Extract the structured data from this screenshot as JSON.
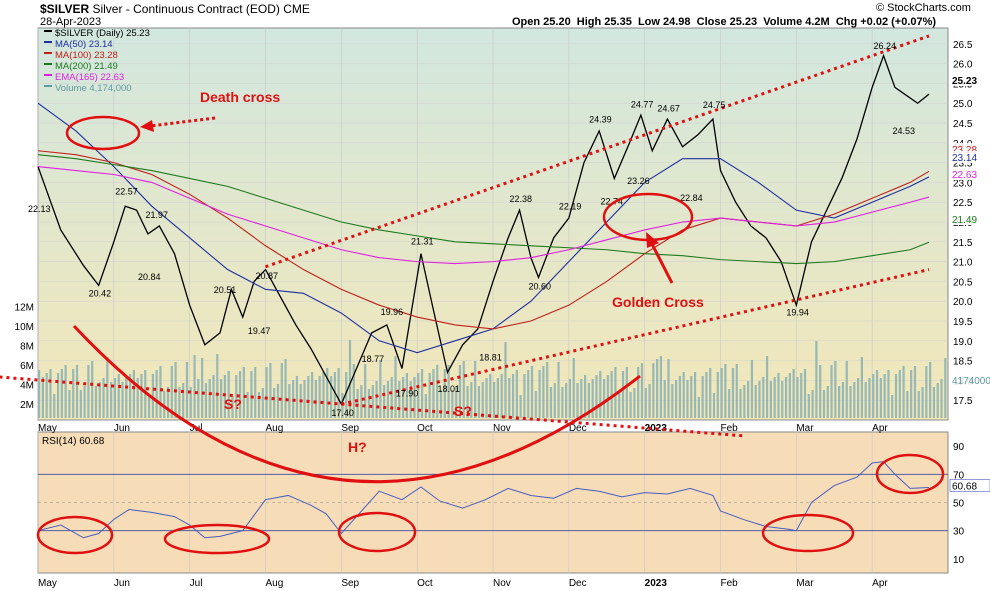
{
  "header": {
    "title_symbol": "$SILVER",
    "title_rest": "Silver - Continuous Contract (EOD)",
    "exchange": "CME",
    "date": "28-Apr-2023",
    "copyright": "© StockCharts.com",
    "ohlc": "Open 25.20  High 25.35  Low 24.98  Close 25.23  Volume 4.2M  Chg +0.02 (+0.07%)"
  },
  "legend": [
    {
      "label": "$SILVER (Daily) 25.23",
      "color": "#000000"
    },
    {
      "label": "MA(50) 23.14",
      "color": "#1f2fa0"
    },
    {
      "label": "MA(100) 23.28",
      "color": "#c0201a"
    },
    {
      "label": "MA(200) 21.49",
      "color": "#1e7a1e"
    },
    {
      "label": "EMA(165) 22.63",
      "color": "#e020e0"
    },
    {
      "label": "Volume 4,174,000",
      "color": "#5e9aa0"
    }
  ],
  "chart_data": [
    {
      "type": "line",
      "name": "price-panel",
      "x_ticks": [
        "May",
        "Jun",
        "Jul",
        "Aug",
        "Sep",
        "Oct",
        "Nov",
        "Dec",
        "2023",
        "Feb",
        "Mar",
        "Apr"
      ],
      "y_ticks": [
        17.5,
        18.0,
        18.5,
        19.0,
        19.5,
        20.0,
        20.5,
        21.0,
        21.5,
        22.0,
        22.5,
        23.0,
        23.5,
        24.0,
        24.5,
        25.0,
        25.5,
        26.0,
        26.5
      ],
      "ylim": [
        17.0,
        26.9
      ],
      "volume_ticks": [
        "2M",
        "4M",
        "6M",
        "8M",
        "10M",
        "12M"
      ],
      "right_labels": [
        {
          "text": "25.23",
          "color": "#000000"
        },
        {
          "text": "23.28",
          "color": "#c0201a"
        },
        {
          "text": "23.14",
          "color": "#1f2fa0"
        },
        {
          "text": "22.63",
          "color": "#e020e0"
        },
        {
          "text": "21.49",
          "color": "#1e7a1e"
        },
        {
          "text": "4174000",
          "color": "#5e9aa0"
        }
      ],
      "price_labels": [
        {
          "text": "22.13",
          "x": 0.0,
          "y": 22.13
        },
        {
          "text": "20.42",
          "x": 0.8,
          "y": 20.42
        },
        {
          "text": "22.57",
          "x": 1.15,
          "y": 22.57
        },
        {
          "text": "21.97",
          "x": 1.55,
          "y": 21.97
        },
        {
          "text": "20.84",
          "x": 1.45,
          "y": 20.84
        },
        {
          "text": "20.51",
          "x": 2.45,
          "y": 20.51
        },
        {
          "text": "20.87",
          "x": 3.0,
          "y": 20.87
        },
        {
          "text": "19.47",
          "x": 2.9,
          "y": 19.47
        },
        {
          "text": "17.40",
          "x": 4.0,
          "y": 17.4
        },
        {
          "text": "18.77",
          "x": 4.4,
          "y": 18.77
        },
        {
          "text": "19.96",
          "x": 4.65,
          "y": 19.96
        },
        {
          "text": "17.90",
          "x": 4.85,
          "y": 17.9
        },
        {
          "text": "21.31",
          "x": 5.05,
          "y": 21.31
        },
        {
          "text": "18.01",
          "x": 5.4,
          "y": 18.01
        },
        {
          "text": "18.81",
          "x": 5.95,
          "y": 18.81
        },
        {
          "text": "22.38",
          "x": 6.35,
          "y": 22.38
        },
        {
          "text": "20.60",
          "x": 6.6,
          "y": 20.6
        },
        {
          "text": "22.19",
          "x": 7.0,
          "y": 22.19
        },
        {
          "text": "22.74",
          "x": 7.55,
          "y": 22.74
        },
        {
          "text": "24.39",
          "x": 7.4,
          "y": 24.39
        },
        {
          "text": "24.77",
          "x": 7.95,
          "y": 24.77
        },
        {
          "text": "23.26",
          "x": 7.9,
          "y": 23.26
        },
        {
          "text": "24.67",
          "x": 8.3,
          "y": 24.67
        },
        {
          "text": "24.75",
          "x": 8.9,
          "y": 24.75
        },
        {
          "text": "22.84",
          "x": 8.6,
          "y": 22.84
        },
        {
          "text": "19.94",
          "x": 10.0,
          "y": 19.94
        },
        {
          "text": "26.24",
          "x": 11.15,
          "y": 26.24
        },
        {
          "text": "24.53",
          "x": 11.4,
          "y": 24.53
        }
      ],
      "series": [
        {
          "name": "$SILVER",
          "color": "#000000",
          "x": [
            0,
            0.3,
            0.6,
            0.8,
            1.0,
            1.15,
            1.3,
            1.45,
            1.6,
            1.8,
            2.0,
            2.2,
            2.4,
            2.55,
            2.7,
            2.85,
            3.0,
            3.2,
            3.4,
            3.6,
            3.8,
            4.0,
            4.2,
            4.4,
            4.6,
            4.8,
            5.05,
            5.2,
            5.4,
            5.6,
            5.8,
            6.0,
            6.2,
            6.35,
            6.5,
            6.6,
            6.8,
            7.0,
            7.2,
            7.4,
            7.6,
            7.8,
            7.95,
            8.1,
            8.3,
            8.5,
            8.7,
            8.9,
            9.0,
            9.2,
            9.4,
            9.6,
            9.8,
            10.0,
            10.2,
            10.4,
            10.6,
            10.8,
            11.0,
            11.15,
            11.3,
            11.45,
            11.6,
            11.75
          ],
          "y": [
            23.4,
            21.8,
            20.9,
            20.4,
            21.5,
            22.4,
            22.3,
            21.7,
            21.9,
            21.2,
            19.9,
            18.9,
            19.2,
            20.3,
            19.6,
            20.5,
            20.8,
            20.1,
            19.4,
            18.8,
            18.1,
            17.4,
            18.3,
            19.2,
            19.4,
            18.3,
            21.2,
            19.9,
            18.2,
            18.9,
            19.3,
            20.5,
            21.6,
            22.3,
            21.1,
            20.6,
            21.6,
            22.1,
            23.5,
            24.3,
            23.1,
            24.0,
            24.7,
            23.8,
            24.6,
            23.9,
            24.2,
            24.6,
            23.3,
            22.5,
            21.9,
            21.6,
            21.0,
            19.9,
            21.5,
            22.3,
            23.1,
            24.1,
            25.4,
            26.2,
            25.4,
            25.2,
            25.0,
            25.23
          ]
        },
        {
          "name": "MA(50)",
          "color": "#1f2fa0",
          "x": [
            0,
            0.5,
            1,
            1.5,
            2,
            2.5,
            3,
            3.5,
            4,
            4.5,
            5,
            5.5,
            6,
            6.5,
            7,
            7.5,
            8,
            8.5,
            9,
            9.5,
            10,
            10.5,
            11,
            11.5,
            11.75
          ],
          "y": [
            25.0,
            24.3,
            23.4,
            22.4,
            21.6,
            20.8,
            20.3,
            20.2,
            19.7,
            19.0,
            18.7,
            19.0,
            19.3,
            20.0,
            21.0,
            22.0,
            23.0,
            23.6,
            23.6,
            23.0,
            22.3,
            22.1,
            22.5,
            22.9,
            23.14
          ]
        },
        {
          "name": "MA(100)",
          "color": "#c0201a",
          "x": [
            0,
            0.5,
            1,
            1.5,
            2,
            2.5,
            3,
            3.5,
            4,
            4.5,
            5,
            5.5,
            6,
            6.5,
            7,
            7.5,
            8,
            8.5,
            9,
            9.5,
            10,
            10.5,
            11,
            11.5,
            11.75
          ],
          "y": [
            23.8,
            23.7,
            23.5,
            23.2,
            22.7,
            22.1,
            21.4,
            20.8,
            20.3,
            19.9,
            19.6,
            19.4,
            19.3,
            19.5,
            19.9,
            20.5,
            21.2,
            21.8,
            22.1,
            22.0,
            21.9,
            22.2,
            22.6,
            23.0,
            23.28
          ]
        },
        {
          "name": "MA(200)",
          "color": "#1e7a1e",
          "x": [
            0,
            0.5,
            1,
            1.5,
            2,
            2.5,
            3,
            3.5,
            4,
            4.5,
            5,
            5.5,
            6,
            6.5,
            7,
            7.5,
            8,
            8.5,
            9,
            9.5,
            10,
            10.5,
            11,
            11.5,
            11.75
          ],
          "y": [
            23.7,
            23.6,
            23.45,
            23.3,
            23.1,
            22.9,
            22.6,
            22.3,
            22.0,
            21.8,
            21.65,
            21.5,
            21.45,
            21.4,
            21.35,
            21.3,
            21.2,
            21.15,
            21.05,
            21.0,
            20.95,
            21.0,
            21.15,
            21.3,
            21.49
          ]
        },
        {
          "name": "EMA(165)",
          "color": "#e020e0",
          "x": [
            0,
            0.5,
            1,
            1.5,
            2,
            2.5,
            3,
            3.5,
            4,
            4.5,
            5,
            5.5,
            6,
            6.5,
            7,
            7.5,
            8,
            8.5,
            9,
            9.5,
            10,
            10.5,
            11,
            11.5,
            11.75
          ],
          "y": [
            23.4,
            23.3,
            23.2,
            23.0,
            22.6,
            22.2,
            21.9,
            21.6,
            21.3,
            21.1,
            21.0,
            20.95,
            21.0,
            21.1,
            21.3,
            21.55,
            21.8,
            22.0,
            22.1,
            22.0,
            21.9,
            22.0,
            22.25,
            22.5,
            22.63
          ]
        }
      ],
      "trendlines": [
        {
          "from": [
            3.0,
            20.87
          ],
          "to": [
            11.75,
            26.7
          ]
        },
        {
          "from": [
            4.0,
            17.4
          ],
          "to": [
            11.75,
            20.8
          ]
        },
        {
          "from": [
            -0.6,
            18.1
          ],
          "to": [
            9.3,
            16.6
          ]
        }
      ],
      "annotations": [
        {
          "text": "Death cross",
          "color": "#e01010"
        },
        {
          "text": "Golden Cross",
          "color": "#e01010"
        },
        {
          "text": "S?",
          "color": "#e01010"
        },
        {
          "text": "S?",
          "color": "#e01010"
        },
        {
          "text": "H?",
          "color": "#e01010"
        }
      ]
    },
    {
      "type": "line",
      "name": "rsi-panel",
      "title": "RSI(14) 60.68",
      "x_ticks": [
        "May",
        "Jun",
        "Jul",
        "Aug",
        "Sep",
        "Oct",
        "Nov",
        "Dec",
        "2023",
        "Feb",
        "Mar",
        "Apr"
      ],
      "y_ticks": [
        10,
        30,
        50,
        70,
        90
      ],
      "ylim": [
        0,
        100
      ],
      "right_label": "60.68",
      "series": [
        {
          "name": "RSI(14)",
          "color": "#4a5cc0",
          "x": [
            0,
            0.3,
            0.6,
            0.8,
            1.0,
            1.2,
            1.5,
            1.8,
            2.0,
            2.2,
            2.4,
            2.55,
            2.7,
            3.0,
            3.3,
            3.6,
            3.8,
            4.0,
            4.2,
            4.5,
            4.8,
            5.05,
            5.3,
            5.6,
            5.9,
            6.2,
            6.5,
            6.8,
            7.1,
            7.4,
            7.7,
            8.0,
            8.3,
            8.6,
            8.9,
            9.0,
            9.3,
            9.6,
            9.9,
            10.0,
            10.2,
            10.5,
            10.8,
            11.0,
            11.15,
            11.3,
            11.5,
            11.75
          ],
          "y": [
            30,
            34,
            25,
            28,
            38,
            45,
            43,
            40,
            34,
            25,
            26,
            28,
            30,
            52,
            55,
            48,
            42,
            28,
            40,
            58,
            52,
            61,
            51,
            46,
            52,
            60,
            55,
            53,
            60,
            58,
            54,
            57,
            56,
            60,
            55,
            44,
            38,
            33,
            31,
            30,
            50,
            62,
            68,
            78,
            79,
            70,
            60,
            60.68
          ]
        }
      ]
    }
  ]
}
